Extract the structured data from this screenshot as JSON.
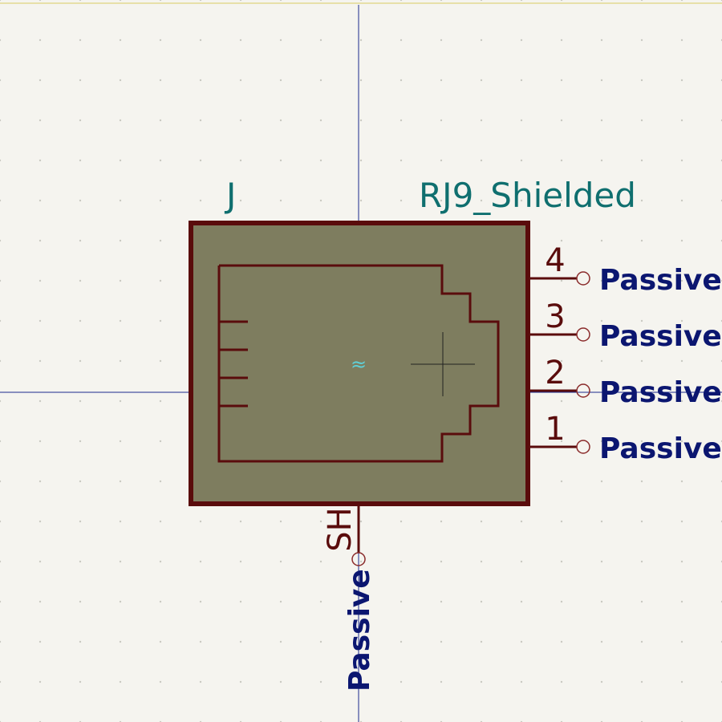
{
  "colors": {
    "background": "#f5f4ef",
    "grid_dot": "#c9c9c2",
    "crosshair": "#1a2a8c",
    "body_outline": "#5a0c0c",
    "body_fill": "#7e7d5f",
    "pin": "#5a0c0c",
    "pin_number": "#5a0c0c",
    "field_text": "#0f6f6f",
    "electrical_type": "#0b1670",
    "marker": "#5fd0d8"
  },
  "symbol": {
    "reference": "J",
    "value": "RJ9_Shielded",
    "center_marker": "≈",
    "pins": [
      {
        "number": "4",
        "electrical_type": "Passive"
      },
      {
        "number": "3",
        "electrical_type": "Passive"
      },
      {
        "number": "2",
        "electrical_type": "Passive"
      },
      {
        "number": "1",
        "electrical_type": "Passive"
      }
    ],
    "shield_pin": {
      "name": "SH",
      "electrical_type": "Passive"
    }
  }
}
